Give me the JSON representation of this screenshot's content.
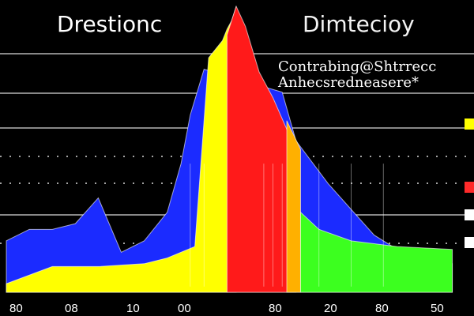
{
  "titles": {
    "left": "Drestionc",
    "right": "Dimtecioy"
  },
  "annotations": [
    "Contrabing@Shtrrecc",
    "Anhecsredneasere*"
  ],
  "colors": {
    "background": "#000000",
    "blue": "#1b2bff",
    "yellow": "#ffff00",
    "red": "#ff1a1a",
    "orange": "#ffb000",
    "green": "#3cff1f",
    "grid": "#ffffff",
    "edge_accents": [
      "#ffff00",
      "#ff2a2a",
      "#ffffff",
      "#ffffff"
    ]
  },
  "chart_data": {
    "type": "area",
    "title": "",
    "xlabel": "",
    "ylabel": "",
    "x_tick_labels": [
      "80",
      "08",
      "10",
      "00",
      "80",
      "20",
      "80",
      "50"
    ],
    "series": [
      {
        "color": "blue",
        "x": [
          0.0,
          0.05,
          0.1,
          0.15,
          0.2,
          0.25,
          0.3,
          0.35,
          0.38,
          0.4,
          0.43,
          0.6,
          0.63,
          0.7,
          0.8,
          0.87,
          0.93,
          0.97
        ],
        "y": [
          0.18,
          0.22,
          0.22,
          0.24,
          0.33,
          0.14,
          0.18,
          0.28,
          0.45,
          0.62,
          0.78,
          0.7,
          0.53,
          0.38,
          0.2,
          0.13,
          0.1,
          0.1
        ]
      },
      {
        "color": "yellow",
        "x": [
          0.0,
          0.1,
          0.2,
          0.3,
          0.35,
          0.41,
          0.44,
          0.47,
          0.48,
          0.49,
          0.5
        ],
        "y": [
          0.03,
          0.09,
          0.09,
          0.1,
          0.12,
          0.16,
          0.82,
          0.88,
          0.92,
          0.95,
          1.0
        ]
      },
      {
        "color": "red",
        "x": [
          0.48,
          0.5,
          0.52,
          0.55,
          0.58,
          0.61,
          0.63
        ],
        "y": [
          0.9,
          1.0,
          0.93,
          0.77,
          0.68,
          0.57,
          0.5
        ]
      },
      {
        "color": "orange",
        "x": [
          0.61,
          0.64
        ],
        "y": [
          0.6,
          0.5
        ]
      },
      {
        "color": "green",
        "x": [
          0.64,
          0.68,
          0.75,
          0.85,
          0.97
        ],
        "y": [
          0.28,
          0.22,
          0.18,
          0.16,
          0.15
        ]
      }
    ],
    "grid": true,
    "legend": false
  }
}
